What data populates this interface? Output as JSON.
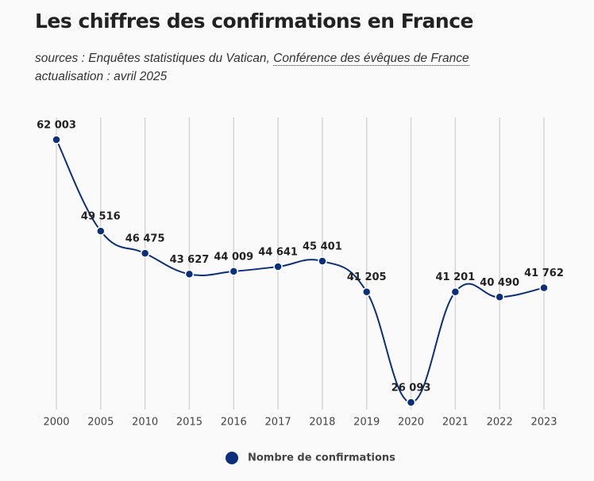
{
  "chart_data": {
    "type": "line",
    "title": "Les chiffres des confirmations en France",
    "source_prefix": "sources : Enquêtes statistiques du Vatican,",
    "source_link": "Conférence des évêques de France",
    "update": "actualisation : avril 2025",
    "categories": [
      "2000",
      "2005",
      "2010",
      "2015",
      "2016",
      "2017",
      "2018",
      "2019",
      "2020",
      "2021",
      "2022",
      "2023"
    ],
    "series": [
      {
        "name": "Nombre de confirmations",
        "color": "#0b2f7a",
        "values": [
          62003,
          49516,
          46475,
          43627,
          44009,
          44641,
          45401,
          41205,
          26093,
          41201,
          40490,
          41762
        ],
        "value_labels": [
          "62 003",
          "49 516",
          "46 475",
          "43 627",
          "44 009",
          "44 641",
          "45 401",
          "41 205",
          "26 093",
          "41 201",
          "40 490",
          "41 762"
        ]
      }
    ],
    "grid": true
  }
}
